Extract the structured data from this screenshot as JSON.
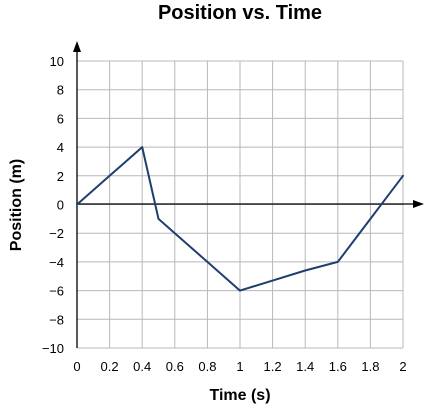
{
  "chart_data": {
    "type": "line",
    "title": "Position vs. Time",
    "xlabel": "Time (s)",
    "ylabel": "Position (m)",
    "xlim": [
      0,
      2
    ],
    "ylim": [
      -10,
      10
    ],
    "grid": true,
    "x_ticks": [
      "0",
      "0.2",
      "0.4",
      "0.6",
      "0.8",
      "1",
      "1.2",
      "1.4",
      "1.6",
      "1.8",
      "2"
    ],
    "y_ticks": [
      "10",
      "8",
      "6",
      "4",
      "2",
      "0",
      "−2",
      "−4",
      "−6",
      "−8",
      "−10"
    ],
    "series": [
      {
        "color": "#1f3f6e",
        "x": [
          0,
          0.1,
          0.2,
          0.3,
          0.4,
          0.5,
          0.6,
          0.8,
          1.0,
          1.2,
          1.4,
          1.6,
          1.7,
          1.8,
          1.9,
          2.0
        ],
        "y": [
          0,
          1,
          2,
          3,
          4,
          -1,
          -2,
          -4,
          -6,
          -5.3,
          -4.6,
          -4,
          -2.5,
          -1,
          0.5,
          2
        ]
      }
    ]
  }
}
